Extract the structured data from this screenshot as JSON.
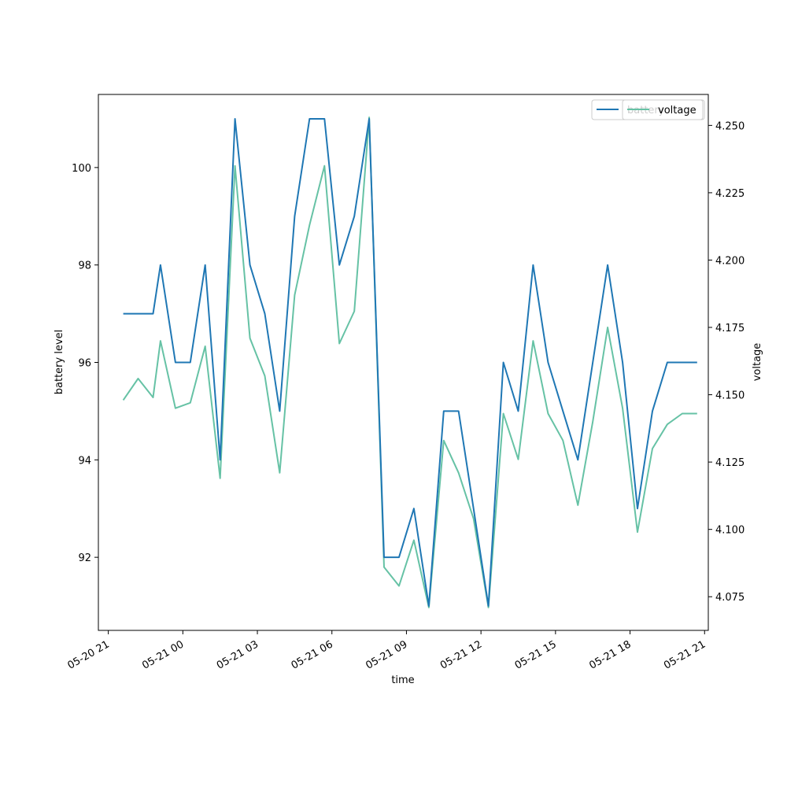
{
  "chart_data": {
    "type": "line",
    "xlabel": "time",
    "ylabel_left": "battery level",
    "ylabel_right": "voltage",
    "x_ticks": [
      "05-20 21",
      "05-21 00",
      "05-21 03",
      "05-21 06",
      "05-21 09",
      "05-21 12",
      "05-21 15",
      "05-21 18",
      "05-21 21"
    ],
    "x_tick_hours": [
      0,
      3,
      6,
      9,
      12,
      15,
      18,
      21,
      24
    ],
    "x_range_hours": [
      -0.4,
      24.15
    ],
    "y_left_ticks": [
      "92",
      "94",
      "96",
      "98",
      "100"
    ],
    "y_left_tick_values": [
      92,
      94,
      96,
      98,
      100
    ],
    "y_left_range": [
      90.5,
      101.5
    ],
    "y_right_ticks": [
      "4.075",
      "4.100",
      "4.125",
      "4.150",
      "4.175",
      "4.200",
      "4.225",
      "4.250"
    ],
    "y_right_tick_values": [
      4.075,
      4.1,
      4.125,
      4.15,
      4.175,
      4.2,
      4.225,
      4.25
    ],
    "y_right_range": [
      4.0625,
      4.2615
    ],
    "legend_placement": "top-right",
    "colors": {
      "battery": "#1f77b4",
      "voltage": "#66c2a5"
    },
    "series": [
      {
        "name": "battery",
        "legend_label": "battery",
        "axis": "left",
        "x_hours": [
          0.6,
          1.8,
          2.1,
          2.7,
          3.3,
          3.9,
          4.5,
          5.1,
          5.7,
          6.3,
          6.9,
          7.5,
          8.1,
          8.7,
          9.3,
          9.9,
          10.5,
          11.1,
          11.7,
          12.3,
          12.9,
          13.5,
          14.1,
          14.7,
          15.3,
          15.9,
          16.5,
          17.1,
          17.7,
          18.3,
          18.9,
          19.5,
          20.1,
          20.7,
          21.3,
          21.9,
          22.5,
          23.1,
          23.7
        ],
        "values": [
          97,
          97,
          98,
          96,
          96,
          98,
          94,
          101,
          98,
          97,
          95,
          99,
          101,
          101,
          98,
          99,
          101,
          92,
          92,
          93,
          91,
          95,
          95,
          93,
          91,
          96,
          95,
          98,
          96,
          95,
          94,
          96,
          98,
          96,
          93,
          95,
          96,
          96,
          96
        ]
      },
      {
        "name": "voltage",
        "legend_label": "voltage",
        "axis": "right",
        "x_hours": [
          0.6,
          1.2,
          1.8,
          2.1,
          2.7,
          3.3,
          3.9,
          4.5,
          5.1,
          5.7,
          6.3,
          6.9,
          7.5,
          8.1,
          8.7,
          9.3,
          9.9,
          10.5,
          11.1,
          11.7,
          12.3,
          12.9,
          13.5,
          14.1,
          14.7,
          15.3,
          15.9,
          16.5,
          17.1,
          17.7,
          18.3,
          18.9,
          19.5,
          20.1,
          20.7,
          21.3,
          21.9,
          22.5,
          23.1,
          23.7
        ],
        "values": [
          4.148,
          4.156,
          4.149,
          4.17,
          4.145,
          4.147,
          4.168,
          4.119,
          4.235,
          4.171,
          4.157,
          4.121,
          4.187,
          4.213,
          4.235,
          4.169,
          4.181,
          4.253,
          4.086,
          4.079,
          4.096,
          4.071,
          4.133,
          4.121,
          4.104,
          4.071,
          4.143,
          4.126,
          4.17,
          4.143,
          4.133,
          4.109,
          4.14,
          4.175,
          4.145,
          4.099,
          4.13,
          4.139,
          4.143,
          4.143
        ]
      }
    ]
  }
}
